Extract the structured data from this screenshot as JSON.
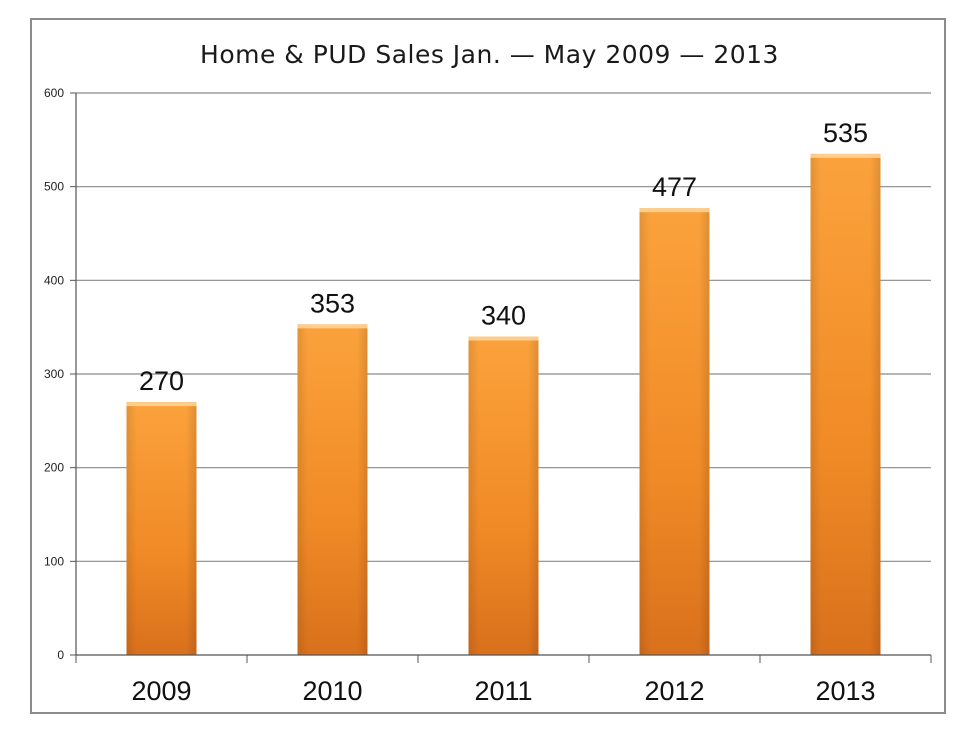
{
  "chart_data": {
    "type": "bar",
    "title": "Home & PUD Sales Jan. — May 2009 — 2013",
    "xlabel": "",
    "ylabel": "",
    "categories": [
      "2009",
      "2010",
      "2011",
      "2012",
      "2013"
    ],
    "values": [
      270,
      353,
      340,
      477,
      535
    ],
    "data_labels": [
      "270",
      "353",
      "340",
      "477",
      "535"
    ],
    "ylim": [
      0,
      600
    ],
    "yticks": [
      0,
      100,
      200,
      300,
      400,
      500,
      600
    ],
    "grid": true,
    "legend": "none",
    "bar_color": "#f3922a"
  }
}
